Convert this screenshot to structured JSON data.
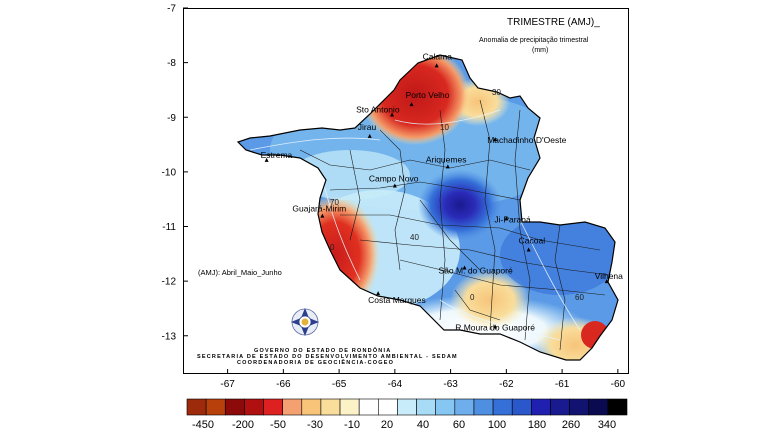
{
  "header": {
    "title": "TRIMESTRE (AMJ)_",
    "subtitle_line1": "Anomalia de precipitação trimestral",
    "subtitle_line2": "(mm)"
  },
  "period_note": "(AMJ): Abril_Maio_Junho",
  "footer": {
    "line1": "GOVERNO DO ESTADO DE RONDÔNIA",
    "line2": "SECRETARIA DE ESTADO DO DESENVOLVIMENTO AMBIENTAL - SEDAM",
    "line3": "COORDENADORIA DE GEOCIÊNCIA-COGEO"
  },
  "axes": {
    "x_ticks": [
      "-67",
      "-66",
      "-65",
      "-64",
      "-63",
      "-62",
      "-61",
      "-60"
    ],
    "y_ticks": [
      "-7",
      "-8",
      "-9",
      "-10",
      "-11",
      "-12",
      "-13"
    ]
  },
  "cities": [
    {
      "name": "Calama",
      "lon": -63.25,
      "lat": -8.05
    },
    {
      "name": "Porto Velho",
      "lon": -63.7,
      "lat": -8.76
    },
    {
      "name": "Sto Antonio",
      "lon": -64.05,
      "lat": -8.95
    },
    {
      "name": "Jirau",
      "lon": -64.45,
      "lat": -9.34
    },
    {
      "name": "Machadinho D'Oeste",
      "lon": -62.2,
      "lat": -9.4
    },
    {
      "name": "Estrema",
      "lon": -66.3,
      "lat": -9.78
    },
    {
      "name": "Ariquemes",
      "lon": -63.05,
      "lat": -9.9
    },
    {
      "name": "Campo Novo",
      "lon": -64.0,
      "lat": -10.25
    },
    {
      "name": "Ji-Paraná",
      "lon": -62.0,
      "lat": -10.85
    },
    {
      "name": "Guajará-Mirim",
      "lon": -65.3,
      "lat": -10.8
    },
    {
      "name": "Cacoal",
      "lon": -61.6,
      "lat": -11.42
    },
    {
      "name": "São M. do Guaporé",
      "lon": -62.75,
      "lat": -11.75
    },
    {
      "name": "Vilhena",
      "lon": -60.2,
      "lat": -12.0
    },
    {
      "name": "Costa Marques",
      "lon": -64.3,
      "lat": -12.22
    },
    {
      "name": "R.Moura do Guaporé",
      "lon": -62.2,
      "lat": -12.83
    }
  ],
  "isolines": [
    "30",
    "10",
    "0",
    "0",
    "40",
    "60",
    "70"
  ],
  "colors": {
    "ocean": "#ffffff",
    "border": "#000000"
  },
  "legend": {
    "labels": [
      "-450",
      "-200",
      "-50",
      "-30",
      "-10",
      "20",
      "40",
      "60",
      "100",
      "180",
      "260",
      "340"
    ],
    "colors": [
      "#9e2a0c",
      "#b8400a",
      "#8c0a0a",
      "#b01010",
      "#dd2020",
      "#f5a070",
      "#f7c47a",
      "#f9dd9a",
      "#fcf2c8",
      "#ffffff",
      "#ffffff",
      "#c8ecfa",
      "#a8dcf6",
      "#86c6f2",
      "#6eaeec",
      "#4e8fe2",
      "#3570d8",
      "#2a57c9",
      "#2020b0",
      "#1a1a90",
      "#121270",
      "#0a0a50",
      "#000000"
    ]
  }
}
